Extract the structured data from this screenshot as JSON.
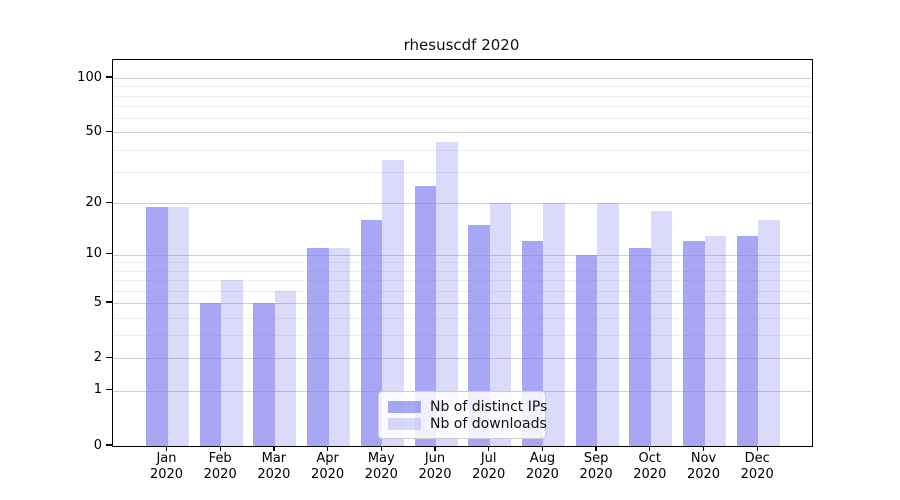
{
  "title": "rhesuscdf 2020",
  "chart_data": {
    "type": "bar",
    "title": "rhesuscdf 2020",
    "x_months": [
      "Jan",
      "Feb",
      "Mar",
      "Apr",
      "May",
      "Jun",
      "Jul",
      "Aug",
      "Sep",
      "Oct",
      "Nov",
      "Dec"
    ],
    "x_year": "2020",
    "series": [
      {
        "name": "Nb of distinct IPs",
        "color": "rgba(121,121,240,0.66)",
        "values": [
          19,
          5,
          5,
          11,
          16,
          25,
          15,
          12,
          10,
          11,
          12,
          13
        ]
      },
      {
        "name": "Nb of downloads",
        "color": "rgba(121,121,240,0.28)",
        "values": [
          19,
          7,
          6,
          11,
          35,
          44,
          20,
          20,
          20,
          18,
          13,
          16
        ]
      }
    ],
    "y_axis": {
      "scale": "log10(value+1)",
      "major_ticks": [
        100,
        50,
        20,
        10,
        5,
        2,
        1,
        0
      ],
      "minor_ticks": [
        90,
        80,
        70,
        60,
        40,
        30,
        9,
        8,
        7,
        6,
        4,
        3
      ],
      "top_value": 126
    },
    "grid": {
      "major_color": "#cfcfcf",
      "minor_color": "#ededed"
    },
    "legend": {
      "position": "bottom-center",
      "border_color": "#cccccc"
    },
    "spine_color": "#000000"
  }
}
